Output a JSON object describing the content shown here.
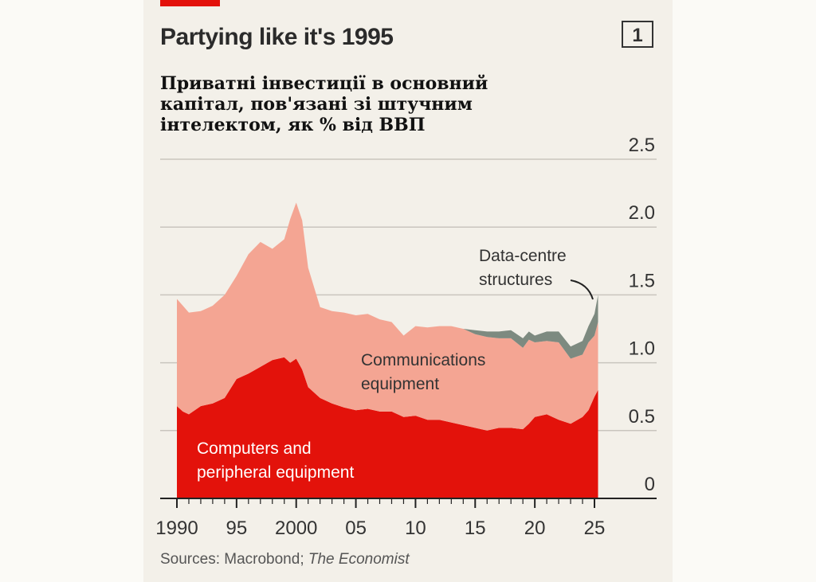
{
  "header": {
    "title": "Partying like it's 1995",
    "chart_number": "1",
    "subtitle": "Приватні інвестиції в основний капітал, пов'язані зі штучним інтелектом, як % від ВВП"
  },
  "source": {
    "prefix": "Sources: Macrobond; ",
    "publication": "The Economist"
  },
  "colors": {
    "computers": "#e3120b",
    "communications": "#f4a593",
    "datacentres": "#7d8a80",
    "grid": "#c9c5be",
    "background": "#f3f0e9"
  },
  "labels": {
    "computers": [
      "Computers and",
      "peripheral equipment"
    ],
    "communications": [
      "Communications",
      "equipment"
    ],
    "datacentres": [
      "Data-centre",
      "structures"
    ]
  },
  "chart_data": {
    "type": "area",
    "stacked": true,
    "xlim": [
      1990,
      2025.4
    ],
    "ylim": [
      0,
      2.5
    ],
    "x_ticks": [
      {
        "value": 1990,
        "label": "1990"
      },
      {
        "value": 1995,
        "label": "95"
      },
      {
        "value": 2000,
        "label": "2000"
      },
      {
        "value": 2005,
        "label": "05"
      },
      {
        "value": 2010,
        "label": "10"
      },
      {
        "value": 2015,
        "label": "15"
      },
      {
        "value": 2020,
        "label": "20"
      },
      {
        "value": 2025,
        "label": "25"
      }
    ],
    "y_ticks": [
      {
        "value": 0,
        "label": "0"
      },
      {
        "value": 0.5,
        "label": "0.5"
      },
      {
        "value": 1.0,
        "label": "1.0"
      },
      {
        "value": 1.5,
        "label": "1.5"
      },
      {
        "value": 2.0,
        "label": "2.0"
      },
      {
        "value": 2.5,
        "label": "2.5"
      }
    ],
    "x": [
      1990,
      1990.5,
      1991,
      1992,
      1993,
      1994,
      1995,
      1996,
      1997,
      1998,
      1999,
      1999.5,
      2000,
      2000.5,
      2001,
      2002,
      2003,
      2004,
      2005,
      2006,
      2007,
      2008,
      2009,
      2010,
      2011,
      2012,
      2013,
      2014,
      2015,
      2016,
      2017,
      2018,
      2019,
      2019.5,
      2020,
      2021,
      2022,
      2023,
      2024,
      2024.5,
      2025,
      2025.3
    ],
    "series": [
      {
        "name": "Computers and peripheral equipment",
        "values": [
          0.68,
          0.64,
          0.62,
          0.68,
          0.7,
          0.74,
          0.88,
          0.92,
          0.97,
          1.02,
          1.04,
          1.0,
          1.03,
          0.95,
          0.82,
          0.74,
          0.7,
          0.67,
          0.65,
          0.66,
          0.64,
          0.64,
          0.6,
          0.61,
          0.58,
          0.58,
          0.56,
          0.54,
          0.52,
          0.5,
          0.52,
          0.52,
          0.51,
          0.55,
          0.6,
          0.62,
          0.58,
          0.55,
          0.6,
          0.65,
          0.75,
          0.8
        ]
      },
      {
        "name": "Communications equipment",
        "values": [
          0.79,
          0.78,
          0.75,
          0.7,
          0.72,
          0.76,
          0.76,
          0.88,
          0.92,
          0.82,
          0.87,
          1.06,
          1.15,
          1.1,
          0.88,
          0.67,
          0.68,
          0.7,
          0.7,
          0.7,
          0.68,
          0.66,
          0.6,
          0.66,
          0.68,
          0.69,
          0.71,
          0.71,
          0.69,
          0.69,
          0.66,
          0.66,
          0.6,
          0.62,
          0.55,
          0.54,
          0.57,
          0.48,
          0.46,
          0.5,
          0.45,
          0.5
        ]
      },
      {
        "name": "Data-centre structures",
        "values": [
          0,
          0,
          0,
          0,
          0,
          0,
          0,
          0,
          0,
          0,
          0,
          0,
          0,
          0,
          0,
          0,
          0,
          0,
          0,
          0,
          0,
          0,
          0,
          0,
          0,
          0,
          0,
          0,
          0.03,
          0.04,
          0.05,
          0.06,
          0.07,
          0.06,
          0.05,
          0.07,
          0.08,
          0.09,
          0.1,
          0.12,
          0.16,
          0.2
        ]
      }
    ]
  }
}
